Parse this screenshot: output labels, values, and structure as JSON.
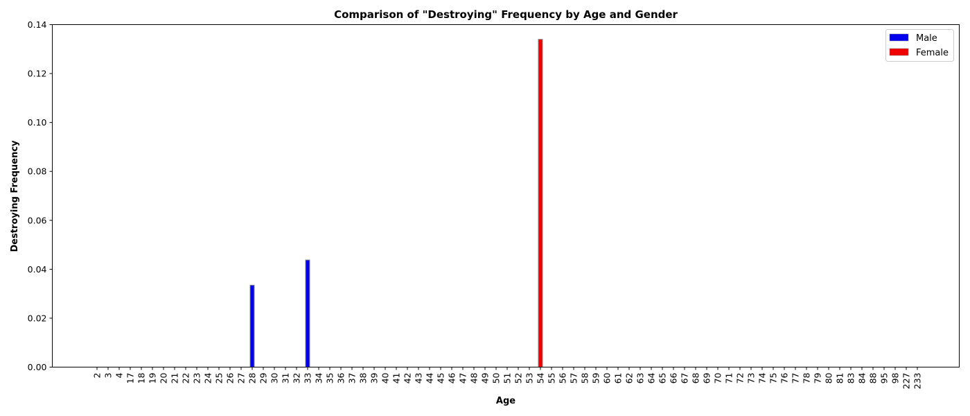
{
  "chart_data": {
    "type": "bar",
    "title": "Comparison of \"Destroying\" Frequency by Age and Gender",
    "xlabel": "Age",
    "ylabel": "Destroying Frequency",
    "ylim": [
      0,
      0.14
    ],
    "yticks": [
      "0.00",
      "0.02",
      "0.04",
      "0.06",
      "0.08",
      "0.10",
      "0.12",
      "0.14"
    ],
    "categories": [
      "2",
      "3",
      "4",
      "17",
      "18",
      "19",
      "20",
      "21",
      "22",
      "23",
      "24",
      "25",
      "26",
      "27",
      "28",
      "29",
      "30",
      "31",
      "32",
      "33",
      "34",
      "35",
      "36",
      "37",
      "38",
      "39",
      "40",
      "41",
      "42",
      "43",
      "44",
      "45",
      "46",
      "47",
      "48",
      "49",
      "50",
      "51",
      "52",
      "53",
      "54",
      "55",
      "56",
      "57",
      "58",
      "59",
      "60",
      "61",
      "62",
      "63",
      "64",
      "65",
      "66",
      "67",
      "68",
      "69",
      "70",
      "71",
      "72",
      "73",
      "74",
      "75",
      "76",
      "77",
      "78",
      "79",
      "80",
      "81",
      "83",
      "84",
      "88",
      "95",
      "98",
      "227",
      "233"
    ],
    "series": [
      {
        "name": "Male",
        "color": "#0000ee",
        "values": [
          0,
          0,
          0,
          0,
          0,
          0,
          0,
          0,
          0,
          0,
          0,
          0,
          0,
          0,
          0.0335,
          0,
          0,
          0,
          0,
          0.0438,
          0,
          0,
          0,
          0,
          0,
          0,
          0,
          0,
          0,
          0,
          0,
          0,
          0,
          0,
          0,
          0,
          0,
          0,
          0,
          0,
          0,
          0,
          0,
          0,
          0,
          0,
          0,
          0,
          0,
          0,
          0,
          0,
          0,
          0,
          0,
          0,
          0,
          0,
          0,
          0,
          0,
          0,
          0,
          0,
          0,
          0,
          0,
          0,
          0,
          0,
          0,
          0,
          0,
          0,
          0
        ]
      },
      {
        "name": "Female",
        "color": "#ee0000",
        "values": [
          0,
          0,
          0,
          0,
          0,
          0,
          0,
          0,
          0,
          0,
          0,
          0,
          0,
          0,
          0,
          0,
          0,
          0,
          0,
          0,
          0,
          0,
          0,
          0,
          0,
          0,
          0,
          0,
          0,
          0,
          0,
          0,
          0,
          0,
          0,
          0,
          0,
          0,
          0,
          0,
          0.134,
          0,
          0,
          0,
          0,
          0,
          0,
          0,
          0,
          0,
          0,
          0,
          0,
          0,
          0,
          0,
          0,
          0,
          0,
          0,
          0,
          0,
          0,
          0,
          0,
          0,
          0,
          0,
          0,
          0,
          0,
          0,
          0,
          0,
          0
        ]
      }
    ],
    "legend_position": "top-right",
    "grid": false
  }
}
